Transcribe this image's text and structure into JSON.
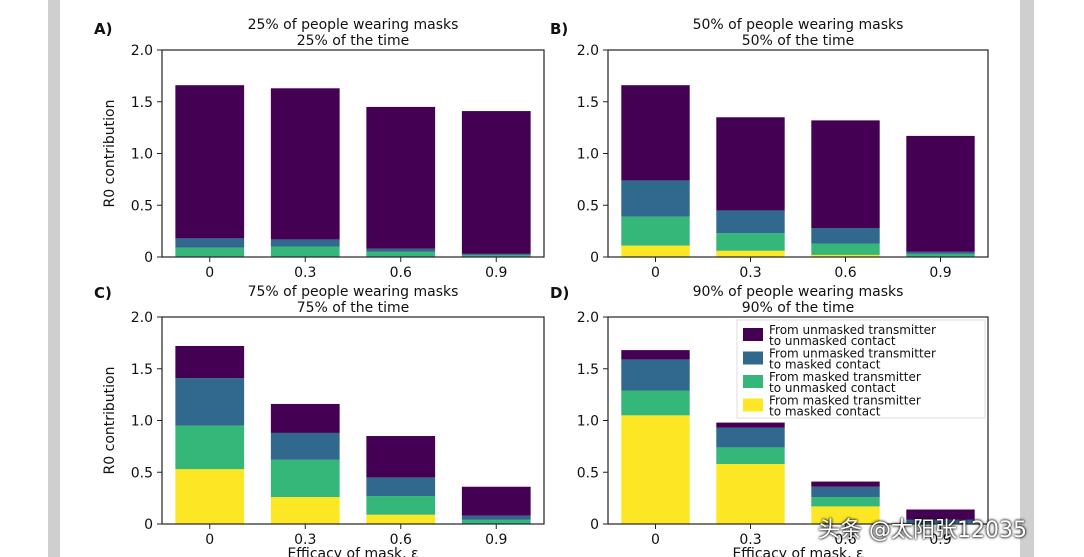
{
  "chart_data": [
    {
      "type": "bar",
      "stacked": true,
      "panel_label": "A)",
      "title": [
        "25% of people wearing masks",
        "25% of the time"
      ],
      "xlabel": "",
      "ylabel": "R0 contribution",
      "ylim": [
        0,
        2.0
      ],
      "yticks": [
        "0",
        "0.5",
        "1.0",
        "1.5",
        "2.0"
      ],
      "categories": [
        "0",
        "0.3",
        "0.6",
        "0.9"
      ],
      "series": [
        {
          "key": "mm",
          "values": [
            0.0,
            0.0,
            0.0,
            0.0
          ]
        },
        {
          "key": "mu",
          "values": [
            0.09,
            0.1,
            0.05,
            0.02
          ]
        },
        {
          "key": "um",
          "values": [
            0.09,
            0.07,
            0.03,
            0.01
          ]
        },
        {
          "key": "uu",
          "values": [
            1.48,
            1.46,
            1.37,
            1.38
          ]
        }
      ]
    },
    {
      "type": "bar",
      "stacked": true,
      "panel_label": "B)",
      "title": [
        "50% of people wearing masks",
        "50% of the time"
      ],
      "xlabel": "",
      "ylabel": "",
      "ylim": [
        0,
        2.0
      ],
      "yticks": [
        "0",
        "0.5",
        "1.0",
        "1.5",
        "2.0"
      ],
      "categories": [
        "0",
        "0.3",
        "0.6",
        "0.9"
      ],
      "series": [
        {
          "key": "mm",
          "values": [
            0.11,
            0.06,
            0.02,
            0.0
          ]
        },
        {
          "key": "mu",
          "values": [
            0.28,
            0.17,
            0.11,
            0.03
          ]
        },
        {
          "key": "um",
          "values": [
            0.35,
            0.22,
            0.15,
            0.02
          ]
        },
        {
          "key": "uu",
          "values": [
            0.92,
            0.9,
            1.04,
            1.12
          ]
        }
      ]
    },
    {
      "type": "bar",
      "stacked": true,
      "panel_label": "C)",
      "title": [
        "75% of people wearing masks",
        "75% of the time"
      ],
      "xlabel": "Efficacy of mask, ε",
      "ylabel": "R0 contribution",
      "ylim": [
        0,
        2.0
      ],
      "yticks": [
        "0",
        "0.5",
        "1.0",
        "1.5",
        "2.0"
      ],
      "categories": [
        "0",
        "0.3",
        "0.6",
        "0.9"
      ],
      "series": [
        {
          "key": "mm",
          "values": [
            0.53,
            0.26,
            0.09,
            0.0
          ]
        },
        {
          "key": "mu",
          "values": [
            0.42,
            0.36,
            0.18,
            0.04
          ]
        },
        {
          "key": "um",
          "values": [
            0.46,
            0.26,
            0.18,
            0.04
          ]
        },
        {
          "key": "uu",
          "values": [
            0.31,
            0.28,
            0.4,
            0.28
          ]
        }
      ]
    },
    {
      "type": "bar",
      "stacked": true,
      "panel_label": "D)",
      "title": [
        "90% of people wearing masks",
        "90% of the time"
      ],
      "xlabel": "Efficacy of mask, ε",
      "ylabel": "",
      "ylim": [
        0,
        2.0
      ],
      "yticks": [
        "0",
        "0.5",
        "1.0",
        "1.5",
        "2.0"
      ],
      "categories": [
        "0",
        "0.3",
        "0.6",
        "0.9"
      ],
      "series": [
        {
          "key": "mm",
          "values": [
            1.05,
            0.58,
            0.17,
            0.0
          ]
        },
        {
          "key": "mu",
          "values": [
            0.24,
            0.16,
            0.09,
            0.01
          ]
        },
        {
          "key": "um",
          "values": [
            0.3,
            0.19,
            0.1,
            0.03
          ]
        },
        {
          "key": "uu",
          "values": [
            0.09,
            0.05,
            0.05,
            0.1
          ]
        }
      ],
      "legend": {
        "position": "upper-right",
        "entries": [
          {
            "key": "uu",
            "label": [
              "From unmasked transmitter",
              "to unmasked contact"
            ]
          },
          {
            "key": "um",
            "label": [
              "From unmasked transmitter",
              "to masked contact"
            ]
          },
          {
            "key": "mu",
            "label": [
              "From masked transmitter",
              "to unmasked contact"
            ]
          },
          {
            "key": "mm",
            "label": [
              "From masked transmitter",
              "to masked contact"
            ]
          }
        ]
      }
    }
  ],
  "colors": {
    "mm": "#fde725",
    "mu": "#35b779",
    "um": "#31688e",
    "uu": "#440154"
  },
  "watermark": "头条 @太阳张12035"
}
